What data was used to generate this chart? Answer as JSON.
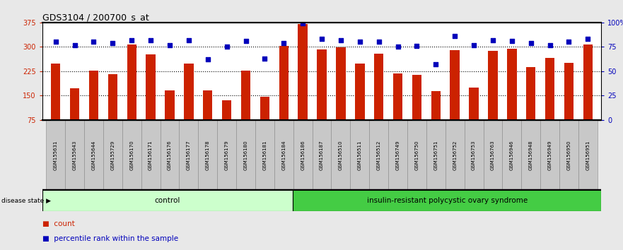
{
  "title": "GDS3104 / 200700_s_at",
  "samples": [
    "GSM155631",
    "GSM155643",
    "GSM155644",
    "GSM155729",
    "GSM156170",
    "GSM156171",
    "GSM156176",
    "GSM156177",
    "GSM156178",
    "GSM156179",
    "GSM156180",
    "GSM156181",
    "GSM156184",
    "GSM156186",
    "GSM156187",
    "GSM156510",
    "GSM156511",
    "GSM156512",
    "GSM156749",
    "GSM156750",
    "GSM156751",
    "GSM156752",
    "GSM156753",
    "GSM156763",
    "GSM156946",
    "GSM156948",
    "GSM156949",
    "GSM156950",
    "GSM156951"
  ],
  "counts": [
    248,
    172,
    228,
    215,
    307,
    277,
    166,
    248,
    166,
    135,
    228,
    147,
    302,
    370,
    293,
    298,
    248,
    280,
    218,
    213,
    163,
    290,
    175,
    287,
    295,
    237,
    266,
    250,
    307
  ],
  "percentile_ranks": [
    80,
    77,
    80,
    79,
    82,
    82,
    77,
    82,
    62,
    75,
    81,
    63,
    79,
    99,
    83,
    82,
    80,
    80,
    75,
    76,
    57,
    86,
    77,
    82,
    81,
    79,
    77,
    80,
    83
  ],
  "control_count": 13,
  "ylim_left": [
    75,
    375
  ],
  "ylim_right": [
    0,
    100
  ],
  "yticks_left": [
    75,
    150,
    225,
    300,
    375
  ],
  "yticks_right": [
    0,
    25,
    50,
    75,
    100
  ],
  "bar_color": "#cc2200",
  "scatter_color": "#0000bb",
  "control_fill": "#ccffcc",
  "pcos_fill": "#44cc44",
  "fig_bg": "#e8e8e8",
  "plot_bg": "#ffffff",
  "tick_box_bg": "#c8c8c8",
  "control_label": "control",
  "pcos_label": "insulin-resistant polycystic ovary syndrome",
  "disease_state_label": "disease state",
  "legend_count": "count",
  "legend_pct": "percentile rank within the sample",
  "grid_yticks": [
    150,
    225,
    300
  ],
  "bar_width": 0.5
}
